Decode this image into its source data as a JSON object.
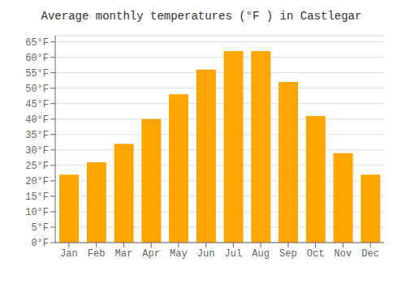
{
  "chart_data": {
    "type": "bar",
    "title": "Average monthly temperatures (°F ) in Castlegar",
    "categories": [
      "Jan",
      "Feb",
      "Mar",
      "Apr",
      "May",
      "Jun",
      "Jul",
      "Aug",
      "Sep",
      "Oct",
      "Nov",
      "Dec"
    ],
    "values": [
      22,
      26,
      32,
      40,
      48,
      56,
      62,
      62,
      52,
      41,
      29,
      22
    ],
    "color": "#FFA500",
    "ylim": [
      0,
      67
    ],
    "yticks": [
      {
        "value": 0,
        "label": "0°F"
      },
      {
        "value": 5,
        "label": "5°F"
      },
      {
        "value": 10,
        "label": "10°F"
      },
      {
        "value": 15,
        "label": "15°F"
      },
      {
        "value": 20,
        "label": "20°F"
      },
      {
        "value": 25,
        "label": "25°F"
      },
      {
        "value": 30,
        "label": "30°F"
      },
      {
        "value": 35,
        "label": "35°F"
      },
      {
        "value": 40,
        "label": "40°F"
      },
      {
        "value": 45,
        "label": "45°F"
      },
      {
        "value": 50,
        "label": "50°F"
      },
      {
        "value": 55,
        "label": "55°F"
      },
      {
        "value": 60,
        "label": "60°F"
      },
      {
        "value": 65,
        "label": "65°F"
      }
    ],
    "grid": true
  }
}
